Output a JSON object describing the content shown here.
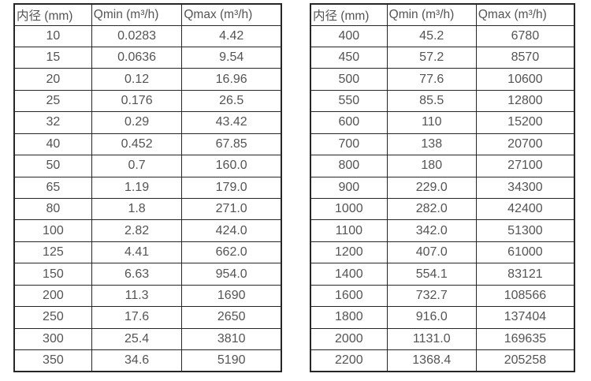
{
  "page": {
    "background": "#ffffff"
  },
  "colors": {
    "border": "#262626",
    "text": "#545454"
  },
  "cell_names": [
    "diameter-cell",
    "qmin-cell",
    "qmax-cell"
  ],
  "header_names": [
    "diameter-header",
    "qmin-header",
    "qmax-header"
  ],
  "tables": [
    {
      "name": "flow-table-small-diameters",
      "headers": [
        "内径 (mm)",
        "Qmin (m³/h)",
        "Qmax (m³/h)"
      ],
      "rows": [
        [
          "10",
          "0.0283",
          "4.42"
        ],
        [
          "15",
          "0.0636",
          "9.54"
        ],
        [
          "20",
          "0.12",
          "16.96"
        ],
        [
          "25",
          "0.176",
          "26.5"
        ],
        [
          "32",
          "0.29",
          "43.42"
        ],
        [
          "40",
          "0.452",
          "67.85"
        ],
        [
          "50",
          "0.7",
          "160.0"
        ],
        [
          "65",
          "1.19",
          "179.0"
        ],
        [
          "80",
          "1.8",
          "271.0"
        ],
        [
          "100",
          "2.82",
          "424.0"
        ],
        [
          "125",
          "4.41",
          "662.0"
        ],
        [
          "150",
          "6.63",
          "954.0"
        ],
        [
          "200",
          "11.3",
          "1690"
        ],
        [
          "250",
          "17.6",
          "2650"
        ],
        [
          "300",
          "25.4",
          "3810"
        ],
        [
          "350",
          "34.6",
          "5190"
        ]
      ]
    },
    {
      "name": "flow-table-large-diameters",
      "headers": [
        "内径 (mm)",
        "Qmin (m³/h)",
        "Qmax (m³/h)"
      ],
      "rows": [
        [
          "400",
          "45.2",
          "6780"
        ],
        [
          "450",
          "57.2",
          "8570"
        ],
        [
          "500",
          "77.6",
          "10600"
        ],
        [
          "550",
          "85.5",
          "12800"
        ],
        [
          "600",
          "110",
          "15200"
        ],
        [
          "700",
          "138",
          "20700"
        ],
        [
          "800",
          "180",
          "27100"
        ],
        [
          "900",
          "229.0",
          "34300"
        ],
        [
          "1000",
          "282.0",
          "42400"
        ],
        [
          "1100",
          "342.0",
          "51300"
        ],
        [
          "1200",
          "407.0",
          "61000"
        ],
        [
          "1400",
          "554.1",
          "83121"
        ],
        [
          "1600",
          "732.7",
          "108566"
        ],
        [
          "1800",
          "916.0",
          "137404"
        ],
        [
          "2000",
          "1131.0",
          "169635"
        ],
        [
          "2200",
          "1368.4",
          "205258"
        ]
      ]
    }
  ]
}
